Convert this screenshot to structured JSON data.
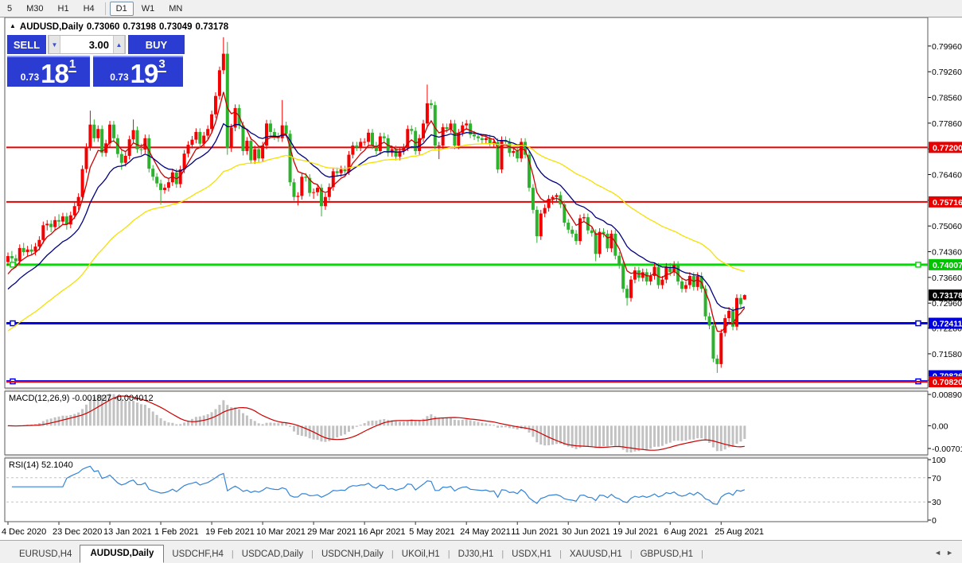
{
  "toolbar": {
    "timeframes": [
      {
        "label": "5",
        "active": false
      },
      {
        "label": "M30",
        "active": false
      },
      {
        "label": "H1",
        "active": false
      },
      {
        "label": "H4",
        "active": false
      },
      {
        "label": "D1",
        "active": true
      },
      {
        "label": "W1",
        "active": false
      },
      {
        "label": "MN",
        "active": false
      }
    ]
  },
  "chart": {
    "header": {
      "symbol": "AUDUSD,Daily",
      "open": "0.73060",
      "high": "0.73198",
      "low": "0.73049",
      "close": "0.73178"
    },
    "trade_panel": {
      "sell_label": "SELL",
      "buy_label": "BUY",
      "volume": "3.00",
      "sell_price_main": "0.73",
      "sell_price_big": "18",
      "sell_price_sup": "1",
      "buy_price_main": "0.73",
      "buy_price_big": "19",
      "buy_price_sup": "3",
      "accent_blue": "#2b3cd2"
    }
  },
  "chart_data": {
    "type": "candlestick",
    "symbol": "AUDUSD",
    "timeframe": "Daily",
    "colors": {
      "bull": "#f40000",
      "bear": "#2db22d",
      "grid_label": "#000000"
    },
    "ylim": [
      0.70734,
      0.8052
    ],
    "y_ticks": [
      "0.79960",
      "0.79260",
      "0.78560",
      "0.77860",
      "0.77160",
      "0.76460",
      "0.75760",
      "0.75060",
      "0.74360",
      "0.73660",
      "0.72960",
      "0.72280",
      "0.71580",
      "0.70860"
    ],
    "x_labels": [
      "4 Dec 2020",
      "23 Dec 2020",
      "13 Jan 2021",
      "1 Feb 2021",
      "19 Feb 2021",
      "10 Mar 2021",
      "29 Mar 2021",
      "16 Apr 2021",
      "5 May 2021",
      "24 May 2021",
      "11 Jun 2021",
      "30 Jun 2021",
      "19 Jul 2021",
      "6 Aug 2021",
      "25 Aug 2021"
    ],
    "levels": [
      {
        "price": 0.772,
        "label": "0.77200",
        "color": "#e60000",
        "bg": "#e60000",
        "width": 2,
        "handles": false
      },
      {
        "price": 0.75716,
        "label": "0.75716",
        "color": "#e60000",
        "bg": "#e60000",
        "width": 2,
        "handles": false
      },
      {
        "price": 0.74007,
        "label": "0.74007",
        "color": "#00dd00",
        "bg": "#00c400",
        "width": 3,
        "handles": true
      },
      {
        "price": 0.72411,
        "label": "0.72411",
        "color": "#0000e6",
        "bg": "#0000dd",
        "width": 3,
        "handles": true
      },
      {
        "price": 0.7083,
        "label": "0.70826",
        "color": "#0000e6",
        "bg": "#0000dd",
        "width": 3,
        "handles": true,
        "chip_dy": -7
      },
      {
        "price": 0.7082,
        "label": "0.70820",
        "color": "#e60000",
        "bg": "#e60000",
        "width": 2,
        "handles": false
      }
    ],
    "current_price": {
      "value": "0.73178",
      "price": 0.73178,
      "bg": "#000000"
    },
    "moving_averages": [
      {
        "period": 6,
        "seed": 0.7356,
        "color": "#cc0000"
      },
      {
        "period": 16,
        "seed": 0.7322,
        "color": "#000080"
      },
      {
        "period": 50,
        "seed": 0.7212,
        "color": "#f5e000"
      }
    ],
    "indicators": {
      "macd": {
        "label": "MACD(12,26,9)",
        "values": "-0.001827 -0.004012",
        "fast": 12,
        "slow": 26,
        "signal": 9,
        "axis": [
          "0.008904",
          "0.00",
          "-0.007013"
        ],
        "histogram_color": "#c2c2c2",
        "signal_color": "#cc0000"
      },
      "rsi": {
        "label": "RSI(14)",
        "value": "52.1040",
        "period": 14,
        "levels": [
          70,
          30
        ],
        "axis": [
          "100",
          "70",
          "30",
          "0"
        ],
        "color": "#3383d6"
      }
    },
    "candles": [
      [
        0.7408,
        0.7434,
        0.7398,
        0.7424
      ],
      [
        0.7424,
        0.7438,
        0.7408,
        0.7418
      ],
      [
        0.7418,
        0.7428,
        0.7395,
        0.741
      ],
      [
        0.741,
        0.7456,
        0.74,
        0.7446
      ],
      [
        0.7446,
        0.746,
        0.7425,
        0.7435
      ],
      [
        0.7435,
        0.7452,
        0.7425,
        0.7442
      ],
      [
        0.7442,
        0.7456,
        0.7426,
        0.7436
      ],
      [
        0.7436,
        0.746,
        0.7426,
        0.745
      ],
      [
        0.745,
        0.7478,
        0.744,
        0.7468
      ],
      [
        0.7468,
        0.7518,
        0.7458,
        0.7508
      ],
      [
        0.7508,
        0.7522,
        0.7494,
        0.7512
      ],
      [
        0.7512,
        0.7522,
        0.7489,
        0.7503
      ],
      [
        0.7503,
        0.7532,
        0.7493,
        0.7522
      ],
      [
        0.7522,
        0.7538,
        0.7504,
        0.7518
      ],
      [
        0.7518,
        0.7542,
        0.7508,
        0.7532
      ],
      [
        0.7532,
        0.7542,
        0.7496,
        0.751
      ],
      [
        0.751,
        0.7545,
        0.75,
        0.7535
      ],
      [
        0.7535,
        0.757,
        0.7525,
        0.756
      ],
      [
        0.756,
        0.7595,
        0.755,
        0.7585
      ],
      [
        0.7585,
        0.7671,
        0.7575,
        0.7661
      ],
      [
        0.7661,
        0.7731,
        0.7651,
        0.7721
      ],
      [
        0.7721,
        0.782,
        0.7711,
        0.7782
      ],
      [
        0.7782,
        0.7796,
        0.7735,
        0.7745
      ],
      [
        0.7745,
        0.778,
        0.7735,
        0.777
      ],
      [
        0.777,
        0.778,
        0.7695,
        0.7705
      ],
      [
        0.7705,
        0.7741,
        0.7695,
        0.7731
      ],
      [
        0.7731,
        0.7792,
        0.7721,
        0.7782
      ],
      [
        0.7782,
        0.7792,
        0.7735,
        0.7745
      ],
      [
        0.7745,
        0.7755,
        0.7692,
        0.7702
      ],
      [
        0.7702,
        0.7712,
        0.7659,
        0.7678
      ],
      [
        0.7678,
        0.7707,
        0.7668,
        0.7697
      ],
      [
        0.7697,
        0.7752,
        0.7687,
        0.7742
      ],
      [
        0.7742,
        0.7796,
        0.7732,
        0.7767
      ],
      [
        0.7767,
        0.7777,
        0.7705,
        0.7715
      ],
      [
        0.7715,
        0.773,
        0.77,
        0.7714
      ],
      [
        0.7714,
        0.7755,
        0.7704,
        0.7745
      ],
      [
        0.7745,
        0.7755,
        0.7652,
        0.7662
      ],
      [
        0.7662,
        0.7672,
        0.763,
        0.764
      ],
      [
        0.764,
        0.765,
        0.7612,
        0.7622
      ],
      [
        0.7622,
        0.7632,
        0.7564,
        0.7604
      ],
      [
        0.7604,
        0.762,
        0.7594,
        0.761
      ],
      [
        0.761,
        0.7635,
        0.76,
        0.7625
      ],
      [
        0.7625,
        0.7662,
        0.7615,
        0.7652
      ],
      [
        0.7652,
        0.7662,
        0.761,
        0.762
      ],
      [
        0.762,
        0.767,
        0.761,
        0.766
      ],
      [
        0.766,
        0.7713,
        0.765,
        0.7703
      ],
      [
        0.7703,
        0.7737,
        0.7693,
        0.7727
      ],
      [
        0.7727,
        0.7751,
        0.7717,
        0.7741
      ],
      [
        0.7741,
        0.7772,
        0.7731,
        0.7762
      ],
      [
        0.7762,
        0.7772,
        0.772,
        0.773
      ],
      [
        0.773,
        0.7762,
        0.772,
        0.7752
      ],
      [
        0.7752,
        0.778,
        0.7742,
        0.777
      ],
      [
        0.777,
        0.782,
        0.776,
        0.781
      ],
      [
        0.781,
        0.787,
        0.78,
        0.786
      ],
      [
        0.786,
        0.794,
        0.785,
        0.793
      ],
      [
        0.793,
        0.802,
        0.792,
        0.7975
      ],
      [
        0.7975,
        0.8007,
        0.77,
        0.7718
      ],
      [
        0.7718,
        0.7784,
        0.7708,
        0.7774
      ],
      [
        0.7774,
        0.7837,
        0.7764,
        0.7827
      ],
      [
        0.7827,
        0.7837,
        0.777,
        0.778
      ],
      [
        0.778,
        0.779,
        0.7698,
        0.771
      ],
      [
        0.771,
        0.7748,
        0.77,
        0.7738
      ],
      [
        0.7738,
        0.7748,
        0.7675,
        0.7685
      ],
      [
        0.7685,
        0.7725,
        0.7675,
        0.7715
      ],
      [
        0.7715,
        0.7725,
        0.768,
        0.769
      ],
      [
        0.769,
        0.7735,
        0.768,
        0.7725
      ],
      [
        0.7725,
        0.7795,
        0.7715,
        0.7785
      ],
      [
        0.7785,
        0.7795,
        0.7752,
        0.7762
      ],
      [
        0.7762,
        0.7772,
        0.774,
        0.775
      ],
      [
        0.775,
        0.776,
        0.7735,
        0.7745
      ],
      [
        0.7745,
        0.7849,
        0.7735,
        0.778
      ],
      [
        0.778,
        0.779,
        0.7747,
        0.7757
      ],
      [
        0.7757,
        0.7767,
        0.7615,
        0.7625
      ],
      [
        0.7625,
        0.7635,
        0.7575,
        0.7585
      ],
      [
        0.7585,
        0.7598,
        0.7562,
        0.7588
      ],
      [
        0.7588,
        0.765,
        0.7578,
        0.764
      ],
      [
        0.764,
        0.765,
        0.7627,
        0.7637
      ],
      [
        0.7637,
        0.7647,
        0.7586,
        0.7596
      ],
      [
        0.7596,
        0.7608,
        0.758,
        0.7598
      ],
      [
        0.7598,
        0.762,
        0.7588,
        0.761
      ],
      [
        0.761,
        0.762,
        0.7532,
        0.756
      ],
      [
        0.756,
        0.7595,
        0.755,
        0.7585
      ],
      [
        0.7585,
        0.7622,
        0.7575,
        0.7612
      ],
      [
        0.7612,
        0.7665,
        0.7602,
        0.7655
      ],
      [
        0.7655,
        0.7665,
        0.764,
        0.765
      ],
      [
        0.765,
        0.767,
        0.764,
        0.766
      ],
      [
        0.766,
        0.767,
        0.7645,
        0.7655
      ],
      [
        0.7655,
        0.771,
        0.7645,
        0.77
      ],
      [
        0.77,
        0.7735,
        0.769,
        0.7725
      ],
      [
        0.7725,
        0.7735,
        0.771,
        0.772
      ],
      [
        0.772,
        0.7745,
        0.771,
        0.7735
      ],
      [
        0.7735,
        0.7745,
        0.7725,
        0.7735
      ],
      [
        0.7735,
        0.777,
        0.7725,
        0.776
      ],
      [
        0.776,
        0.777,
        0.7715,
        0.7725
      ],
      [
        0.7725,
        0.7735,
        0.77,
        0.771
      ],
      [
        0.771,
        0.776,
        0.77,
        0.775
      ],
      [
        0.775,
        0.776,
        0.7735,
        0.7745
      ],
      [
        0.7745,
        0.7755,
        0.7695,
        0.7705
      ],
      [
        0.7705,
        0.7725,
        0.7695,
        0.7715
      ],
      [
        0.7715,
        0.7725,
        0.7685,
        0.7695
      ],
      [
        0.7695,
        0.772,
        0.7685,
        0.771
      ],
      [
        0.771,
        0.773,
        0.77,
        0.772
      ],
      [
        0.772,
        0.778,
        0.771,
        0.777
      ],
      [
        0.777,
        0.778,
        0.7755,
        0.7765
      ],
      [
        0.7765,
        0.7775,
        0.77,
        0.771
      ],
      [
        0.771,
        0.7755,
        0.77,
        0.7745
      ],
      [
        0.7745,
        0.7795,
        0.7735,
        0.7785
      ],
      [
        0.7785,
        0.7891,
        0.7775,
        0.784
      ],
      [
        0.784,
        0.785,
        0.7825,
        0.7835
      ],
      [
        0.7835,
        0.7845,
        0.7715,
        0.7725
      ],
      [
        0.7725,
        0.7735,
        0.7688,
        0.7725
      ],
      [
        0.7725,
        0.7785,
        0.7715,
        0.7775
      ],
      [
        0.7775,
        0.7785,
        0.776,
        0.777
      ],
      [
        0.777,
        0.7795,
        0.776,
        0.7785
      ],
      [
        0.7785,
        0.7795,
        0.7715,
        0.7725
      ],
      [
        0.7725,
        0.777,
        0.7715,
        0.776
      ],
      [
        0.776,
        0.779,
        0.775,
        0.778
      ],
      [
        0.778,
        0.7795,
        0.777,
        0.7785
      ],
      [
        0.7785,
        0.7795,
        0.7745,
        0.7755
      ],
      [
        0.7755,
        0.7765,
        0.774,
        0.775
      ],
      [
        0.775,
        0.776,
        0.7735,
        0.7745
      ],
      [
        0.7745,
        0.7755,
        0.773,
        0.774
      ],
      [
        0.774,
        0.7755,
        0.773,
        0.7745
      ],
      [
        0.7745,
        0.7755,
        0.772,
        0.773
      ],
      [
        0.773,
        0.7745,
        0.772,
        0.7735
      ],
      [
        0.7735,
        0.7745,
        0.765,
        0.766
      ],
      [
        0.766,
        0.775,
        0.765,
        0.774
      ],
      [
        0.774,
        0.775,
        0.7725,
        0.7735
      ],
      [
        0.7735,
        0.7745,
        0.7695,
        0.7705
      ],
      [
        0.7705,
        0.772,
        0.7695,
        0.771
      ],
      [
        0.771,
        0.772,
        0.768,
        0.769
      ],
      [
        0.769,
        0.7745,
        0.768,
        0.7735
      ],
      [
        0.7735,
        0.7745,
        0.769,
        0.77
      ],
      [
        0.77,
        0.771,
        0.76,
        0.761
      ],
      [
        0.761,
        0.762,
        0.754,
        0.755
      ],
      [
        0.755,
        0.756,
        0.746,
        0.7478
      ],
      [
        0.7478,
        0.755,
        0.7468,
        0.754
      ],
      [
        0.754,
        0.7565,
        0.753,
        0.7555
      ],
      [
        0.7555,
        0.759,
        0.7545,
        0.758
      ],
      [
        0.758,
        0.759,
        0.7565,
        0.7585
      ],
      [
        0.7585,
        0.7595,
        0.757,
        0.759
      ],
      [
        0.759,
        0.76,
        0.7555,
        0.7565
      ],
      [
        0.7565,
        0.7575,
        0.7505,
        0.7515
      ],
      [
        0.7515,
        0.7525,
        0.7486,
        0.7496
      ],
      [
        0.7496,
        0.7506,
        0.7475,
        0.7485
      ],
      [
        0.7485,
        0.7495,
        0.7455,
        0.7465
      ],
      [
        0.7465,
        0.7537,
        0.7455,
        0.7527
      ],
      [
        0.7527,
        0.754,
        0.7517,
        0.753
      ],
      [
        0.753,
        0.754,
        0.7484,
        0.7494
      ],
      [
        0.7494,
        0.7504,
        0.7477,
        0.7487
      ],
      [
        0.7487,
        0.7497,
        0.741,
        0.743
      ],
      [
        0.743,
        0.75,
        0.742,
        0.749
      ],
      [
        0.749,
        0.75,
        0.7475,
        0.7485
      ],
      [
        0.7485,
        0.7495,
        0.7435,
        0.7445
      ],
      [
        0.7445,
        0.7495,
        0.7435,
        0.7485
      ],
      [
        0.7485,
        0.7495,
        0.7415,
        0.7425
      ],
      [
        0.7425,
        0.7435,
        0.739,
        0.74
      ],
      [
        0.74,
        0.741,
        0.7325,
        0.7335
      ],
      [
        0.7335,
        0.7345,
        0.7289,
        0.731
      ],
      [
        0.731,
        0.737,
        0.73,
        0.736
      ],
      [
        0.736,
        0.7395,
        0.735,
        0.7385
      ],
      [
        0.7385,
        0.7395,
        0.7355,
        0.7365
      ],
      [
        0.7365,
        0.739,
        0.7355,
        0.738
      ],
      [
        0.738,
        0.739,
        0.7345,
        0.7355
      ],
      [
        0.7355,
        0.738,
        0.7345,
        0.737
      ],
      [
        0.737,
        0.7405,
        0.736,
        0.7395
      ],
      [
        0.7395,
        0.7405,
        0.7335,
        0.7345
      ],
      [
        0.7345,
        0.737,
        0.7335,
        0.736
      ],
      [
        0.736,
        0.7405,
        0.735,
        0.7395
      ],
      [
        0.7395,
        0.7405,
        0.737,
        0.738
      ],
      [
        0.738,
        0.741,
        0.737,
        0.74
      ],
      [
        0.74,
        0.741,
        0.7345,
        0.7355
      ],
      [
        0.7355,
        0.7365,
        0.7325,
        0.7335
      ],
      [
        0.7335,
        0.7355,
        0.7325,
        0.7345
      ],
      [
        0.7345,
        0.738,
        0.7335,
        0.737
      ],
      [
        0.737,
        0.738,
        0.733,
        0.734
      ],
      [
        0.734,
        0.738,
        0.733,
        0.737
      ],
      [
        0.737,
        0.738,
        0.7325,
        0.7335
      ],
      [
        0.7335,
        0.7345,
        0.725,
        0.726
      ],
      [
        0.726,
        0.727,
        0.7225,
        0.7235
      ],
      [
        0.7235,
        0.7245,
        0.7135,
        0.7145
      ],
      [
        0.7145,
        0.7155,
        0.7106,
        0.713
      ],
      [
        0.713,
        0.7225,
        0.712,
        0.7215
      ],
      [
        0.7215,
        0.7265,
        0.7205,
        0.7255
      ],
      [
        0.7255,
        0.7285,
        0.7245,
        0.7275
      ],
      [
        0.7275,
        0.7285,
        0.7222,
        0.7232
      ],
      [
        0.7232,
        0.732,
        0.7222,
        0.731
      ],
      [
        0.731,
        0.732,
        0.7283,
        0.7293
      ],
      [
        0.7306,
        0.73198,
        0.73049,
        0.73178
      ]
    ]
  },
  "tabs": {
    "items": [
      {
        "label": "EURUSD,H4",
        "active": false
      },
      {
        "label": "AUDUSD,Daily",
        "active": true
      },
      {
        "label": "USDCHF,H4",
        "active": false
      },
      {
        "label": "USDCAD,Daily",
        "active": false
      },
      {
        "label": "USDCNH,Daily",
        "active": false
      },
      {
        "label": "UKOil,H1",
        "active": false
      },
      {
        "label": "DJ30,H1",
        "active": false
      },
      {
        "label": "USDX,H1",
        "active": false
      },
      {
        "label": "XAUUSD,H1",
        "active": false
      },
      {
        "label": "GBPUSD,H1",
        "active": false
      }
    ],
    "nav_left": "◄",
    "nav_right": "►"
  }
}
